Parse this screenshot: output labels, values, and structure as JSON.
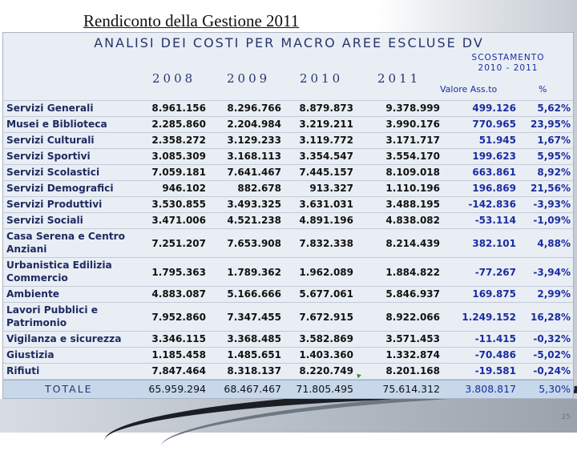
{
  "slide": {
    "title": "Rendiconto della Gestione 2011",
    "page_number": "25"
  },
  "table": {
    "title": "ANALISI DEI COSTI PER MACRO AREE ESCLUSE DV",
    "years": [
      "2008",
      "2009",
      "2010",
      "2011"
    ],
    "scostamento_title": "SCOSTAMENTO",
    "scostamento_period": "2010 - 2011",
    "valore_label": "Valore Ass.to",
    "percent_label": "%",
    "rows": [
      {
        "label": "Servizi Generali",
        "v2008": "8.961.156",
        "v2009": "8.296.766",
        "v2010": "8.879.873",
        "v2011": "9.378.999",
        "diff": "499.126",
        "pct": "5,62%"
      },
      {
        "label": "Musei e Biblioteca",
        "v2008": "2.285.860",
        "v2009": "2.204.984",
        "v2010": "3.219.211",
        "v2011": "3.990.176",
        "diff": "770.965",
        "pct": "23,95%"
      },
      {
        "label": "Servizi Culturali",
        "v2008": "2.358.272",
        "v2009": "3.129.233",
        "v2010": "3.119.772",
        "v2011": "3.171.717",
        "diff": "51.945",
        "pct": "1,67%"
      },
      {
        "label": "Servizi Sportivi",
        "v2008": "3.085.309",
        "v2009": "3.168.113",
        "v2010": "3.354.547",
        "v2011": "3.554.170",
        "diff": "199.623",
        "pct": "5,95%"
      },
      {
        "label": "Servizi Scolastici",
        "v2008": "7.059.181",
        "v2009": "7.641.467",
        "v2010": "7.445.157",
        "v2011": "8.109.018",
        "diff": "663.861",
        "pct": "8,92%"
      },
      {
        "label": "Servizi Demografici",
        "v2008": "946.102",
        "v2009": "882.678",
        "v2010": "913.327",
        "v2011": "1.110.196",
        "diff": "196.869",
        "pct": "21,56%"
      },
      {
        "label": "Servizi Produttivi",
        "v2008": "3.530.855",
        "v2009": "3.493.325",
        "v2010": "3.631.031",
        "v2011": "3.488.195",
        "diff": "-142.836",
        "pct": "-3,93%"
      },
      {
        "label": "Servizi Sociali",
        "v2008": "3.471.006",
        "v2009": "4.521.238",
        "v2010": "4.891.196",
        "v2011": "4.838.082",
        "diff": "-53.114",
        "pct": "-1,09%"
      },
      {
        "label": "Casa Serena e Centro Anziani",
        "v2008": "7.251.207",
        "v2009": "7.653.908",
        "v2010": "7.832.338",
        "v2011": "8.214.439",
        "diff": "382.101",
        "pct": "4,88%"
      },
      {
        "label": "Urbanistica Edilizia Commercio",
        "v2008": "1.795.363",
        "v2009": "1.789.362",
        "v2010": "1.962.089",
        "v2011": "1.884.822",
        "diff": "-77.267",
        "pct": "-3,94%"
      },
      {
        "label": "Ambiente",
        "v2008": "4.883.087",
        "v2009": "5.166.666",
        "v2010": "5.677.061",
        "v2011": "5.846.937",
        "diff": "169.875",
        "pct": "2,99%"
      },
      {
        "label": "Lavori Pubblici e Patrimonio",
        "v2008": "7.952.860",
        "v2009": "7.347.455",
        "v2010": "7.672.915",
        "v2011": "8.922.066",
        "diff": "1.249.152",
        "pct": "16,28%"
      },
      {
        "label": "Vigilanza e sicurezza",
        "v2008": "3.346.115",
        "v2009": "3.368.485",
        "v2010": "3.582.869",
        "v2011": "3.571.453",
        "diff": "-11.415",
        "pct": "-0,32%"
      },
      {
        "label": "Giustizia",
        "v2008": "1.185.458",
        "v2009": "1.485.651",
        "v2010": "1.403.360",
        "v2011": "1.332.874",
        "diff": "-70.486",
        "pct": "-5,02%"
      },
      {
        "label": "Rifiuti",
        "v2008": "7.847.464",
        "v2009": "8.318.137",
        "v2010": "8.220.749",
        "v2011": "8.201.168",
        "diff": "-19.581",
        "pct": "-0,24%"
      }
    ],
    "total": {
      "label": "TOTALE",
      "v2008": "65.959.294",
      "v2009": "68.467.467",
      "v2010": "71.805.495",
      "v2011": "75.614.312",
      "diff": "3.808.817",
      "pct": "5,30%"
    }
  },
  "colors": {
    "header_text": "#27356c",
    "accent_blue": "#1a2ca0",
    "total_band": "#c7d8ea"
  }
}
